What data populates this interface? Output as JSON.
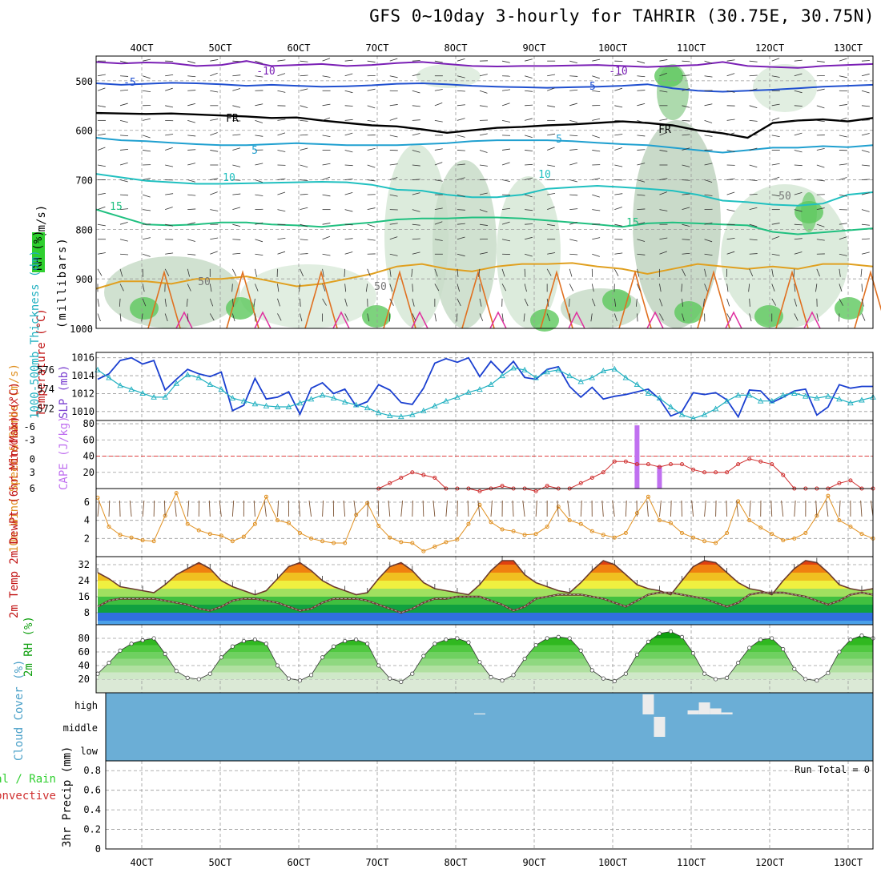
{
  "title": "GFS 0~10day 3-hourly for TAHRIR (30.75E, 30.75N)",
  "colors": {
    "temp_label": "#c01010",
    "rh_green": "#2fcf2f",
    "thick_line": "#20b0c0",
    "slp_line": "#1a3fd0",
    "cape_bar": "#c070f0",
    "li_line": "#d03030",
    "wind_line": "#e09020",
    "cloud_bg": "#6baed6",
    "freezing": "#000000"
  },
  "x_axis": {
    "ticks": [
      "4OCT",
      "5OCT",
      "6OCT",
      "7OCT",
      "8OCT",
      "9OCT",
      "10OCT",
      "11OCT",
      "12OCT",
      "13OCT"
    ]
  },
  "run_total": "Run Total = 0",
  "chart_data": [
    {
      "type": "contour",
      "name": "upper_air",
      "ylabel_parts": [
        "Wind (m/s)",
        "Temperature (°C)",
        "RH (%)",
        "(millibars)"
      ],
      "y_ticks": [
        500,
        600,
        700,
        800,
        900,
        1000
      ],
      "ylim": [
        1000,
        450
      ],
      "isotherms": [
        {
          "value": "-10",
          "label": "-10",
          "color": "#7a1fb5",
          "levels_mb": [
            462,
            465,
            463,
            464,
            470,
            468,
            460,
            470,
            468,
            466,
            470,
            468,
            464,
            462,
            466,
            470,
            471,
            470,
            470,
            469,
            468,
            470,
            472,
            470,
            468,
            462,
            470,
            472,
            474,
            470,
            468,
            466
          ]
        },
        {
          "value": "-5",
          "label": "-5",
          "color": "#2050d0",
          "levels_mb": [
            505,
            508,
            506,
            504,
            505,
            507,
            510,
            508,
            510,
            512,
            511,
            509,
            506,
            505,
            507,
            510,
            512,
            513,
            514,
            513,
            512,
            510,
            507,
            515,
            520,
            522,
            520,
            518,
            515,
            512,
            510,
            508
          ]
        },
        {
          "value": "0",
          "label": "FR",
          "color": "#000000",
          "levels_mb": [
            565,
            566,
            567,
            566,
            568,
            570,
            572,
            575,
            574,
            580,
            585,
            590,
            592,
            598,
            605,
            600,
            595,
            593,
            590,
            588,
            585,
            582,
            585,
            590,
            600,
            606,
            615,
            585,
            580,
            578,
            582,
            575
          ]
        },
        {
          "value": "5",
          "label": "5",
          "color": "#20a0d0",
          "levels_mb": [
            615,
            620,
            622,
            625,
            628,
            630,
            630,
            628,
            626,
            628,
            630,
            630,
            630,
            628,
            626,
            622,
            620,
            620,
            620,
            622,
            625,
            628,
            630,
            635,
            640,
            645,
            640,
            635,
            635,
            632,
            634,
            630
          ]
        },
        {
          "value": "10",
          "label": "10",
          "color": "#20c0c0",
          "levels_mb": [
            688,
            695,
            702,
            705,
            708,
            708,
            707,
            706,
            705,
            704,
            705,
            710,
            720,
            722,
            730,
            735,
            735,
            730,
            718,
            715,
            712,
            715,
            718,
            722,
            730,
            742,
            745,
            750,
            752,
            748,
            730,
            725
          ]
        },
        {
          "value": "15",
          "label": "15",
          "color": "#20c080",
          "levels_mb": [
            760,
            775,
            790,
            792,
            790,
            786,
            786,
            790,
            792,
            795,
            790,
            786,
            780,
            778,
            778,
            776,
            776,
            778,
            782,
            786,
            790,
            795,
            788,
            786,
            788,
            790,
            792,
            805,
            810,
            806,
            802,
            798
          ]
        },
        {
          "value": "20",
          "label": "20",
          "color": "#e0a020",
          "levels_mb": [
            920,
            905,
            905,
            910,
            900,
            900,
            895,
            905,
            915,
            910,
            900,
            890,
            875,
            870,
            880,
            885,
            875,
            870,
            870,
            868,
            875,
            880,
            890,
            880,
            870,
            875,
            880,
            875,
            880,
            870,
            870,
            875
          ]
        }
      ],
      "annotations": [
        "-10",
        "-5",
        "FR",
        "5",
        "10",
        "15",
        "-10",
        "-5",
        "FR",
        "5",
        "10",
        "15",
        "50",
        "50",
        "50"
      ]
    },
    {
      "type": "line",
      "name": "thickness_slp",
      "ylabel_left": "1000-500mb Thickness (dm)",
      "ylabel_right": "SLP (mb)",
      "y_ticks_left": [
        572,
        574,
        576
      ],
      "y_ticks_right": [
        1010,
        1012,
        1014,
        1016
      ],
      "ylim_left": [
        570.8,
        577.8
      ],
      "ylim_right": [
        1009,
        1016.6
      ],
      "series": [
        {
          "name": "SLP",
          "axis": "right",
          "color": "#1a3fd0",
          "values": [
            1013.6,
            1014.2,
            1015.7,
            1016,
            1015.3,
            1015.7,
            1012.4,
            1013.6,
            1014.7,
            1014.2,
            1013.9,
            1014.4,
            1010.1,
            1010.7,
            1013.7,
            1011.4,
            1011.6,
            1012.2,
            1009.7,
            1012.6,
            1013.2,
            1012.0,
            1012.5,
            1010.6,
            1011.1,
            1013.0,
            1012.4,
            1011.0,
            1010.8,
            1012.6,
            1015.4,
            1015.9,
            1015.5,
            1016.0,
            1013.9,
            1015.6,
            1014.3,
            1015.6,
            1013.8,
            1013.6,
            1014.7,
            1015.0,
            1012.8,
            1011.6,
            1012.7,
            1011.4,
            1011.7,
            1011.9,
            1012.2,
            1012.5,
            1011.4,
            1009.5,
            1010.0,
            1012.1,
            1011.9,
            1012.1,
            1011.3,
            1009.4,
            1012.4,
            1012.3,
            1011.0,
            1011.6,
            1012.3,
            1012.5,
            1009.6,
            1010.5,
            1013.0,
            1012.6,
            1012.8,
            1012.8
          ]
        },
        {
          "name": "Thickness",
          "axis": "left",
          "color": "#20b0c0",
          "values": [
            576.0,
            575.2,
            574.4,
            574.0,
            573.6,
            573.2,
            573.2,
            574.6,
            575.5,
            575.2,
            574.5,
            574.0,
            573.1,
            572.8,
            572.5,
            572.3,
            572.2,
            572.2,
            572.6,
            573.0,
            573.4,
            573.1,
            572.7,
            572.4,
            572.1,
            571.6,
            571.3,
            571.2,
            571.4,
            571.8,
            572.3,
            572.8,
            573.2,
            573.7,
            574.0,
            574.5,
            575.4,
            576.2,
            576.0,
            575.2,
            575.8,
            576.0,
            575.4,
            574.8,
            575.2,
            575.9,
            576.1,
            575.2,
            574.5,
            573.6,
            573.1,
            572.2,
            571.4,
            571.0,
            571.4,
            572.0,
            572.8,
            573.4,
            573.4,
            572.8,
            572.8,
            573.4,
            573.6,
            573.3,
            573.1,
            573.3,
            573.0,
            572.6,
            572.9,
            573.2
          ]
        }
      ]
    },
    {
      "type": "bar+line",
      "name": "cape_li",
      "ylabel_left": "Lifted Index",
      "ylabel_right": "CAPE (J/kg)",
      "y_ticks_left": [
        "-6",
        "-3",
        "0",
        "3",
        "6"
      ],
      "y_ticks_right": [
        20,
        40,
        60,
        80
      ],
      "ylim_right": [
        0,
        84
      ],
      "series": [
        {
          "name": "CAPE",
          "color": "#c070f0",
          "bars": [
            {
              "i": 48,
              "value": 78
            },
            {
              "i": 50,
              "value": 28
            }
          ]
        },
        {
          "name": "Lifted Index",
          "color": "#d03030",
          "values": [
            null,
            null,
            null,
            null,
            null,
            null,
            null,
            null,
            null,
            null,
            null,
            null,
            null,
            null,
            null,
            null,
            null,
            null,
            null,
            null,
            null,
            null,
            null,
            null,
            null,
            6,
            5,
            4,
            3,
            3.5,
            4,
            6,
            6,
            6,
            6.5,
            6,
            5.5,
            6,
            6,
            6.5,
            5.5,
            6,
            6,
            5,
            4,
            3,
            1,
            1,
            1.5,
            1.5,
            2,
            1.5,
            1.5,
            2.5,
            3,
            3,
            3,
            1.5,
            0.5,
            1,
            1.5,
            3.5,
            6,
            6,
            6,
            6,
            5,
            4.5,
            6,
            6
          ]
        }
      ]
    },
    {
      "type": "line",
      "name": "wind10m",
      "ylabel": "10m Wind Speed & Barbs (m/s)",
      "y_ticks": [
        2,
        4,
        6
      ],
      "ylim": [
        0,
        7.5
      ],
      "series": [
        {
          "name": "10m Wind Speed",
          "color": "#e09020",
          "values": [
            6.5,
            3.3,
            2.4,
            2.1,
            1.8,
            1.7,
            4.5,
            7,
            3.6,
            2.9,
            2.5,
            2.3,
            1.7,
            2.2,
            3.6,
            6.6,
            4.0,
            3.7,
            2.6,
            2.0,
            1.7,
            1.5,
            1.5,
            4.6,
            5.9,
            3.4,
            2.1,
            1.6,
            1.5,
            0.6,
            1.1,
            1.6,
            1.9,
            3.6,
            5.7,
            3.8,
            3.0,
            2.8,
            2.4,
            2.5,
            3.3,
            5.5,
            4.0,
            3.6,
            2.8,
            2.4,
            2.1,
            2.6,
            4.8,
            6.6,
            4.0,
            3.7,
            2.6,
            2.1,
            1.7,
            1.5,
            2.6,
            6.1,
            4.0,
            3.2,
            2.5,
            1.8,
            2.0,
            2.6,
            4.5,
            6.7,
            4.0,
            3.3,
            2.5,
            2.0
          ]
        }
      ]
    },
    {
      "type": "area",
      "name": "temp2m",
      "ylabel": "2m Temp 2m DewPt (6hr Min/Max) (°C)",
      "y_ticks": [
        8,
        16,
        24,
        32
      ],
      "ylim": [
        2,
        36
      ],
      "series": [
        {
          "name": "2m Temp",
          "color": "#6b3a2e",
          "values": [
            28,
            25,
            21,
            20,
            19,
            18,
            22,
            27,
            30,
            33,
            30,
            24,
            21,
            19,
            17,
            19,
            25,
            31,
            33,
            29,
            24,
            21,
            19,
            17,
            18,
            25,
            31,
            33,
            29,
            23,
            20,
            19,
            18,
            17,
            22,
            29,
            34,
            34,
            27,
            23,
            21,
            19,
            18,
            23,
            29,
            34,
            32,
            27,
            22,
            20,
            19,
            17,
            24,
            31,
            34,
            33,
            28,
            23,
            20,
            19,
            17,
            24,
            30,
            34,
            33,
            28,
            22,
            20,
            19,
            20
          ]
        },
        {
          "name": "2m DewPt",
          "color": "#aaaaaa",
          "values": [
            11,
            14,
            15,
            15,
            15,
            15,
            14,
            13,
            12,
            10,
            9,
            11,
            14,
            15,
            15,
            14,
            13,
            11,
            9,
            10,
            13,
            15,
            15,
            15,
            14,
            12,
            10,
            8,
            10,
            13,
            15,
            15,
            16,
            16,
            16,
            14,
            12,
            9,
            11,
            15,
            16,
            17,
            17,
            17,
            16,
            15,
            13,
            11,
            14,
            17,
            18,
            18,
            17,
            16,
            15,
            13,
            11,
            13,
            17,
            18,
            18,
            18,
            17,
            16,
            14,
            12,
            14,
            17,
            18,
            17
          ]
        }
      ],
      "bands": [
        4,
        8,
        12,
        16,
        20,
        24,
        28,
        32
      ]
    },
    {
      "type": "area",
      "name": "rh2m",
      "ylabel": "2m RH (%)",
      "y_ticks": [
        20,
        40,
        60,
        80
      ],
      "ylim": [
        0,
        100
      ],
      "series": [
        {
          "name": "2m RH",
          "color": "#20b020",
          "values": [
            28,
            44,
            62,
            72,
            77,
            80,
            57,
            32,
            22,
            20,
            28,
            52,
            68,
            76,
            78,
            72,
            40,
            21,
            18,
            26,
            52,
            68,
            76,
            78,
            72,
            40,
            21,
            16,
            28,
            54,
            72,
            78,
            80,
            74,
            45,
            23,
            18,
            26,
            50,
            70,
            80,
            82,
            80,
            62,
            33,
            21,
            17,
            28,
            56,
            75,
            87,
            90,
            82,
            58,
            28,
            20,
            22,
            44,
            66,
            78,
            80,
            64,
            35,
            20,
            18,
            29,
            60,
            78,
            84,
            80
          ]
        }
      ]
    },
    {
      "type": "area",
      "name": "cloud_cover",
      "ylabel": "Cloud Cover (%)",
      "y_ticks": [
        "high",
        "middle",
        "low"
      ],
      "blocks": [
        {
          "i": 34,
          "layer": "high",
          "value": 5
        },
        {
          "i": 49,
          "layer": "high",
          "value": 100
        },
        {
          "i": 50,
          "layer": "middle",
          "value": 100
        },
        {
          "i": 53,
          "layer": "high",
          "value": 20
        },
        {
          "i": 54,
          "layer": "high",
          "value": 60
        },
        {
          "i": 55,
          "layer": "high",
          "value": 30
        },
        {
          "i": 56,
          "layer": "high",
          "value": 10
        }
      ]
    },
    {
      "type": "bar",
      "name": "precip",
      "ylabel_parts": [
        "Total / Rain",
        "Convective",
        "3hr Precip (mm)"
      ],
      "y_ticks": [
        0,
        0.2,
        0.4,
        0.6,
        0.8
      ],
      "ylim": [
        0,
        0.9
      ],
      "values": [],
      "run_total": "Run Total = 0"
    }
  ]
}
